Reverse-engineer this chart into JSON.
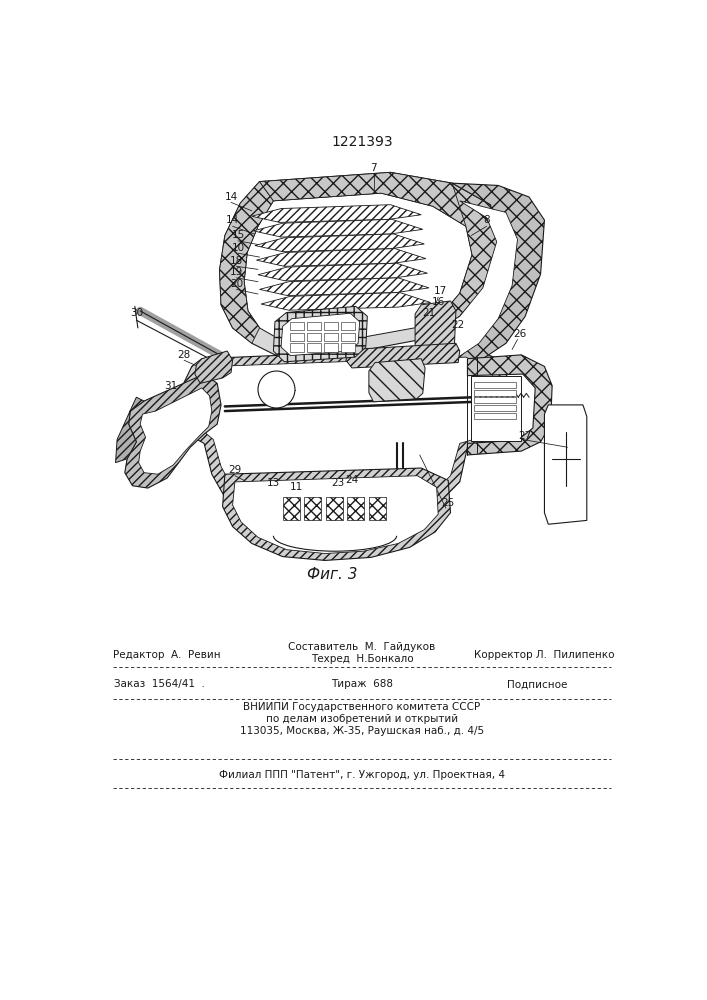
{
  "patent_number": "1221393",
  "figure_caption": "Фиг. 3",
  "footer": {
    "line1_left": "Редактор  А.  Ревин",
    "line1_center": "Составитель  М.  Гайдуков",
    "line1_center2": "Техред  Н.Бонкало",
    "line1_right": "Корректор Л.  Пилипенко",
    "line2_left": "Заказ  1564/41  .",
    "line2_center": "Тираж  688",
    "line2_right": "Подписное",
    "line3": "ВНИИПИ Государственного комитета СССР",
    "line4": "по делам изобретений и открытий",
    "line5": "113035, Москва, Ж-35, Раушская наб., д. 4/5",
    "line6": "Филиал ППП \"Патент\", г. Ужгород, ул. Проектная, 4"
  },
  "bg_color": "#ffffff",
  "line_color": "#1a1a1a"
}
